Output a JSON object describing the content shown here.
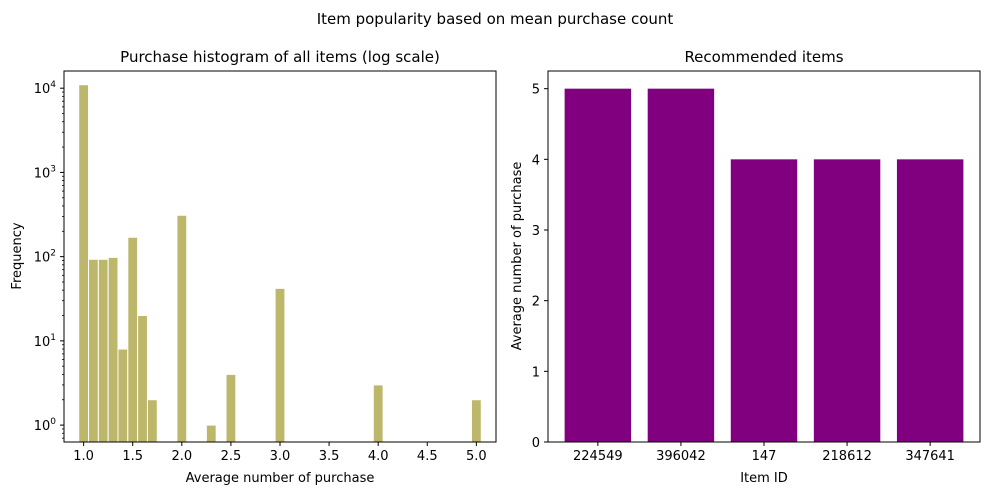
{
  "suptitle": "Item popularity based on mean purchase count",
  "chart_data": [
    {
      "type": "bar",
      "title": "Purchase histogram of all items (log scale)",
      "xlabel": "Average number of purchase",
      "ylabel": "Frequency",
      "yscale": "log",
      "xlim": [
        0.8,
        5.2
      ],
      "ylim": [
        0.63,
        16000
      ],
      "color": "#bdb76b",
      "bar_width": 0.1,
      "xticks": [
        1.0,
        1.5,
        2.0,
        2.5,
        3.0,
        3.5,
        4.0,
        4.5,
        5.0
      ],
      "xtick_labels": [
        "1.0",
        "1.5",
        "2.0",
        "2.5",
        "3.0",
        "3.5",
        "4.0",
        "4.5",
        "5.0"
      ],
      "ytick_values": [
        1,
        10,
        100,
        1000,
        10000
      ],
      "ytick_labels": [
        "10^0",
        "10^1",
        "10^2",
        "10^3",
        "10^4"
      ],
      "bins": [
        {
          "x": 1.0,
          "count": 11000
        },
        {
          "x": 1.1,
          "count": 93
        },
        {
          "x": 1.2,
          "count": 93
        },
        {
          "x": 1.3,
          "count": 98
        },
        {
          "x": 1.4,
          "count": 8
        },
        {
          "x": 1.5,
          "count": 170
        },
        {
          "x": 1.6,
          "count": 20
        },
        {
          "x": 1.7,
          "count": 2
        },
        {
          "x": 2.0,
          "count": 310
        },
        {
          "x": 2.3,
          "count": 1
        },
        {
          "x": 2.5,
          "count": 4
        },
        {
          "x": 3.0,
          "count": 42
        },
        {
          "x": 4.0,
          "count": 3
        },
        {
          "x": 5.0,
          "count": 2
        }
      ]
    },
    {
      "type": "bar",
      "title": "Recommended items",
      "xlabel": "Item ID",
      "ylabel": "Average number of purchase",
      "ylim": [
        0,
        5.25
      ],
      "color": "#800080",
      "categories": [
        "224549",
        "396042",
        "147",
        "218612",
        "347641"
      ],
      "values": [
        5,
        5,
        4,
        4,
        4
      ],
      "yticks": [
        "0",
        "1",
        "2",
        "3",
        "4",
        "5"
      ]
    }
  ]
}
